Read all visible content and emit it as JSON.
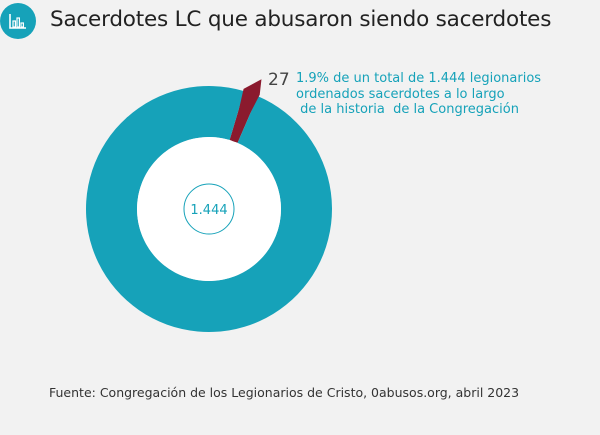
{
  "header": {
    "title": "Sacerdotes LC que abusaron siendo sacerdotes",
    "icon": "bar-chart-icon",
    "accent_color": "#16a2b9"
  },
  "chart_data": {
    "type": "pie",
    "donut": true,
    "center_label": "1.444",
    "total": 1444,
    "slices": [
      {
        "label": "27",
        "value": 27,
        "color": "#8b1a2e"
      },
      {
        "value": 1417,
        "color": "#16a2b9"
      }
    ],
    "annotation": "1.9% de un total de 1.444 legionarios\nordenados sacerdotes a lo largo\n de la historia  de la Congregación"
  },
  "footer": {
    "source": "Fuente: Congregación de los Legionarios de Cristo, 0abusos.org, abril 2023"
  }
}
